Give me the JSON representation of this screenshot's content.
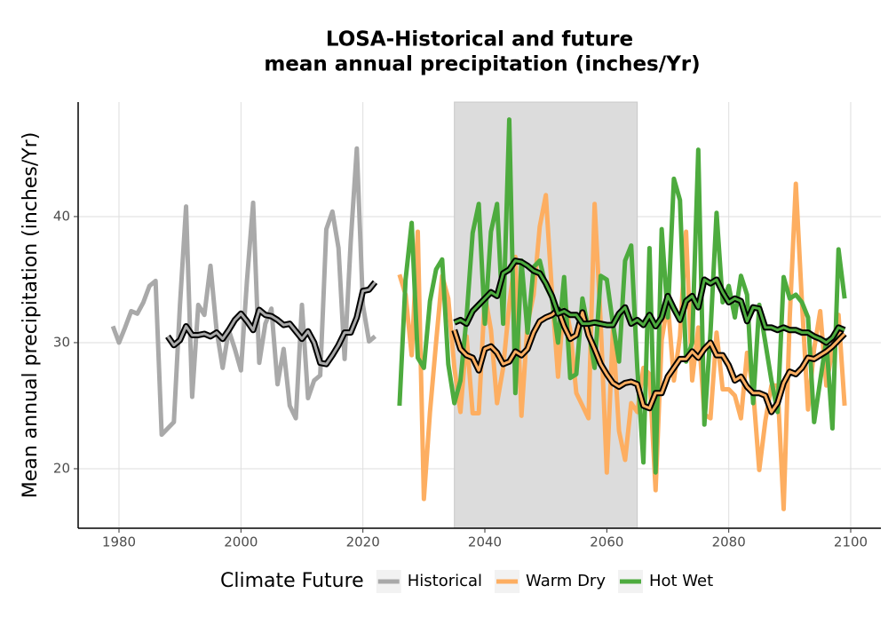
{
  "chart_data": {
    "type": "line",
    "title": [
      "LOSA-Historical and future",
      "mean annual precipitation (inches/Yr)"
    ],
    "y_label": "Mean annual precipitation (inches/Yr)",
    "legend_title": "Climate Future",
    "legend_position": "bottom",
    "grid": true,
    "xlim": [
      1973.3,
      2104.95
    ],
    "ylim": [
      15.28,
      49.08
    ],
    "xticks": [
      1980,
      2000,
      2020,
      2040,
      2060,
      2080,
      2100
    ],
    "yticks": [
      20,
      30,
      40
    ],
    "shade": [
      2035,
      2065
    ],
    "shade_color": "#dcdcdc",
    "rolling_outline_color": "#000000",
    "series": [
      {
        "name": "Historical",
        "color": "#a9a9a9",
        "x": [
          1979,
          1980,
          1981,
          1982,
          1983,
          1984,
          1985,
          1986,
          1987,
          1988,
          1989,
          1990,
          1991,
          1992,
          1993,
          1994,
          1995,
          1996,
          1997,
          1998,
          1999,
          2000,
          2001,
          2002,
          2003,
          2004,
          2005,
          2006,
          2007,
          2008,
          2009,
          2010,
          2011,
          2012,
          2013,
          2014,
          2015,
          2016,
          2017,
          2018,
          2019,
          2020,
          2021,
          2022
        ],
        "values": [
          31.3,
          30.0,
          31.2,
          32.5,
          32.3,
          33.2,
          34.5,
          34.9,
          22.7,
          23.2,
          23.7,
          33.0,
          40.8,
          25.7,
          33.0,
          32.2,
          36.1,
          31.0,
          28.0,
          31.0,
          29.5,
          27.8,
          35.0,
          41.1,
          28.4,
          31.5,
          32.7,
          26.7,
          29.5,
          25.0,
          24.0,
          33.0,
          25.6,
          27.0,
          27.4,
          39.0,
          40.4,
          37.5,
          28.7,
          38.0,
          45.4,
          33.0,
          30.1,
          30.5
        ],
        "rolling": {
          "x": [
            1988,
            1989,
            1990,
            1991,
            1992,
            1993,
            1994,
            1995,
            1996,
            1997,
            1998,
            1999,
            2000,
            2001,
            2002,
            2003,
            2004,
            2005,
            2006,
            2007,
            2008,
            2009,
            2010,
            2011,
            2012,
            2013,
            2014,
            2015,
            2016,
            2017,
            2018,
            2019,
            2020,
            2021,
            2022
          ],
          "values": [
            30.5,
            29.8,
            30.2,
            31.3,
            30.6,
            30.6,
            30.7,
            30.5,
            30.8,
            30.3,
            31.0,
            31.8,
            32.3,
            31.7,
            31.0,
            32.6,
            32.2,
            32.1,
            31.8,
            31.4,
            31.5,
            30.9,
            30.3,
            30.9,
            30.0,
            28.4,
            28.3,
            29.0,
            29.8,
            30.8,
            30.8,
            32.0,
            34.1,
            34.2,
            34.8
          ]
        }
      },
      {
        "name": "Warm Dry",
        "color": "#fdae61",
        "x": [
          2026,
          2027,
          2028,
          2029,
          2030,
          2031,
          2032,
          2033,
          2034,
          2035,
          2036,
          2037,
          2038,
          2039,
          2040,
          2041,
          2042,
          2043,
          2044,
          2045,
          2046,
          2047,
          2048,
          2049,
          2050,
          2051,
          2052,
          2053,
          2054,
          2055,
          2056,
          2057,
          2058,
          2059,
          2060,
          2061,
          2062,
          2063,
          2064,
          2065,
          2066,
          2067,
          2068,
          2069,
          2070,
          2071,
          2072,
          2073,
          2074,
          2075,
          2076,
          2077,
          2078,
          2079,
          2080,
          2081,
          2082,
          2083,
          2084,
          2085,
          2086,
          2087,
          2088,
          2089,
          2090,
          2091,
          2092,
          2093,
          2094,
          2095,
          2096,
          2097,
          2098,
          2099
        ],
        "values": [
          35.4,
          33.8,
          29.0,
          38.8,
          17.6,
          24.5,
          30.0,
          35.3,
          33.5,
          28.0,
          24.5,
          30.5,
          24.4,
          24.4,
          33.8,
          31.0,
          25.2,
          28.0,
          33.0,
          36.8,
          24.2,
          31.5,
          33.8,
          39.2,
          41.7,
          34.0,
          27.3,
          33.5,
          31.0,
          26.0,
          25.0,
          24.0,
          41.0,
          31.5,
          19.7,
          31.0,
          23.0,
          20.7,
          25.2,
          24.5,
          28.0,
          27.5,
          18.3,
          30.2,
          33.2,
          27.0,
          30.5,
          38.8,
          27.0,
          31.2,
          24.3,
          24.0,
          30.8,
          26.3,
          26.3,
          25.8,
          24.0,
          29.2,
          26.2,
          19.9,
          23.8,
          26.6,
          26.6,
          16.8,
          32.0,
          42.6,
          33.2,
          24.7,
          29.5,
          32.5,
          26.6,
          29.5,
          32.2,
          25.0
        ],
        "rolling": {
          "x": [
            2035,
            2036,
            2037,
            2038,
            2039,
            2040,
            2041,
            2042,
            2043,
            2044,
            2045,
            2046,
            2047,
            2048,
            2049,
            2050,
            2051,
            2052,
            2053,
            2054,
            2055,
            2056,
            2057,
            2058,
            2059,
            2060,
            2061,
            2062,
            2063,
            2064,
            2065,
            2066,
            2067,
            2068,
            2069,
            2070,
            2071,
            2072,
            2073,
            2074,
            2075,
            2076,
            2077,
            2078,
            2079,
            2080,
            2081,
            2082,
            2083,
            2084,
            2085,
            2086,
            2087,
            2088,
            2089,
            2090,
            2091,
            2092,
            2093,
            2094,
            2095,
            2096,
            2097,
            2098,
            2099
          ],
          "values": [
            31.0,
            29.5,
            29.0,
            28.8,
            27.8,
            29.5,
            29.7,
            29.2,
            28.3,
            28.5,
            29.3,
            29.0,
            29.5,
            30.8,
            31.7,
            32.0,
            32.2,
            32.6,
            31.3,
            30.3,
            30.6,
            32.4,
            30.6,
            29.5,
            28.3,
            27.5,
            26.8,
            26.5,
            26.8,
            26.9,
            26.7,
            25.0,
            24.8,
            26.0,
            26.0,
            27.3,
            28.0,
            28.7,
            28.7,
            29.3,
            28.8,
            29.5,
            30.0,
            29.0,
            29.0,
            28.2,
            27.0,
            27.3,
            26.5,
            26.0,
            26.0,
            25.8,
            24.5,
            25.2,
            26.8,
            27.7,
            27.5,
            28.0,
            28.8,
            28.7,
            29.0,
            29.3,
            29.7,
            30.2,
            30.7
          ]
        }
      },
      {
        "name": "Hot Wet",
        "color": "#4dab3e",
        "x": [
          2026,
          2027,
          2028,
          2029,
          2030,
          2031,
          2032,
          2033,
          2034,
          2035,
          2036,
          2037,
          2038,
          2039,
          2040,
          2041,
          2042,
          2043,
          2044,
          2045,
          2046,
          2047,
          2048,
          2049,
          2050,
          2051,
          2052,
          2053,
          2054,
          2055,
          2056,
          2057,
          2058,
          2059,
          2060,
          2061,
          2062,
          2063,
          2064,
          2065,
          2066,
          2067,
          2068,
          2069,
          2070,
          2071,
          2072,
          2073,
          2074,
          2075,
          2076,
          2077,
          2078,
          2079,
          2080,
          2081,
          2082,
          2083,
          2084,
          2085,
          2086,
          2087,
          2088,
          2089,
          2090,
          2091,
          2092,
          2093,
          2094,
          2095,
          2096,
          2097,
          2098,
          2099
        ],
        "values": [
          25.0,
          35.0,
          39.5,
          28.8,
          28.0,
          33.3,
          35.8,
          36.6,
          28.3,
          25.2,
          27.0,
          32.0,
          38.7,
          41.0,
          31.5,
          38.8,
          41.0,
          31.5,
          47.7,
          26.0,
          36.5,
          30.8,
          36.0,
          36.5,
          34.5,
          33.5,
          30.0,
          35.2,
          27.2,
          27.5,
          33.5,
          31.0,
          28.0,
          35.3,
          35.0,
          31.5,
          28.5,
          36.5,
          37.7,
          28.0,
          20.5,
          37.5,
          19.7,
          39.0,
          32.0,
          43.0,
          41.3,
          28.5,
          30.0,
          45.3,
          23.5,
          30.8,
          40.3,
          33.2,
          34.5,
          32.0,
          35.3,
          33.8,
          25.2,
          33.0,
          30.0,
          27.0,
          24.5,
          35.2,
          33.5,
          33.8,
          33.2,
          32.0,
          23.7,
          27.0,
          30.2,
          23.2,
          37.4,
          33.5
        ],
        "rolling": {
          "x": [
            2035,
            2036,
            2037,
            2038,
            2039,
            2040,
            2041,
            2042,
            2043,
            2044,
            2045,
            2046,
            2047,
            2048,
            2049,
            2050,
            2051,
            2052,
            2053,
            2054,
            2055,
            2056,
            2057,
            2058,
            2059,
            2060,
            2061,
            2062,
            2063,
            2064,
            2065,
            2066,
            2067,
            2068,
            2069,
            2070,
            2071,
            2072,
            2073,
            2074,
            2075,
            2076,
            2077,
            2078,
            2079,
            2080,
            2081,
            2082,
            2083,
            2084,
            2085,
            2086,
            2087,
            2088,
            2089,
            2090,
            2091,
            2092,
            2093,
            2094,
            2095,
            2096,
            2097,
            2098,
            2099
          ],
          "values": [
            31.6,
            31.8,
            31.5,
            32.5,
            33.0,
            33.5,
            34.0,
            33.7,
            35.5,
            35.8,
            36.5,
            36.4,
            36.1,
            35.7,
            35.5,
            34.7,
            33.7,
            32.3,
            32.5,
            32.2,
            32.2,
            31.5,
            31.5,
            31.6,
            31.5,
            31.4,
            31.4,
            32.3,
            32.8,
            31.5,
            31.8,
            31.4,
            32.2,
            31.3,
            32.0,
            33.7,
            32.7,
            31.8,
            33.3,
            33.7,
            32.8,
            35.0,
            34.7,
            35.0,
            34.0,
            33.2,
            33.5,
            33.3,
            31.7,
            32.8,
            32.7,
            31.2,
            31.2,
            31.0,
            31.2,
            31.0,
            31.0,
            30.8,
            30.8,
            30.5,
            30.3,
            30.0,
            30.4,
            31.2,
            31.0
          ]
        }
      }
    ]
  }
}
